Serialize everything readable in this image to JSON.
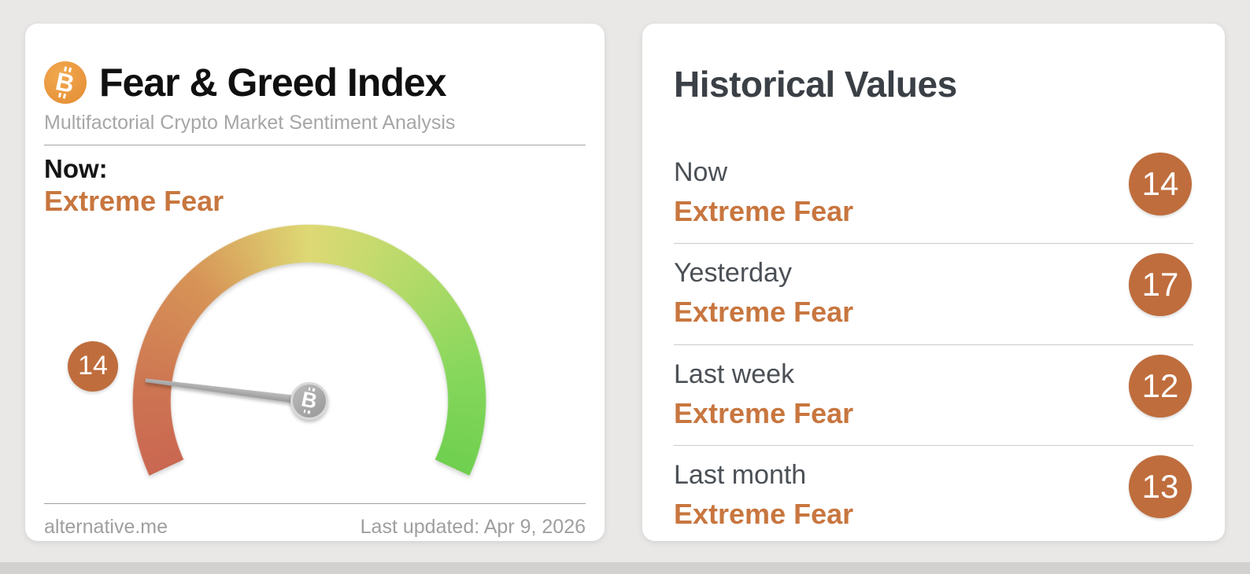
{
  "page": {
    "background": "#e9e8e7",
    "bottom_strip_color": "#d2d1d0"
  },
  "gauge_card": {
    "title": "Fear & Greed Index",
    "subtitle": "Multifactorial Crypto Market Sentiment Analysis",
    "now_label": "Now:",
    "now_sentiment": "Extreme Fear",
    "gauge_value_badge": "14",
    "footer": {
      "site": "alternative.me",
      "last_updated": "Last updated: Apr 9, 2026"
    }
  },
  "historical": {
    "title": "Historical Values",
    "rows": [
      {
        "label": "Now",
        "sentiment": "Extreme Fear",
        "value": "14"
      },
      {
        "label": "Yesterday",
        "sentiment": "Extreme Fear",
        "value": "17"
      },
      {
        "label": "Last week",
        "sentiment": "Extreme Fear",
        "value": "12"
      },
      {
        "label": "Last month",
        "sentiment": "Extreme Fear",
        "value": "13"
      }
    ]
  },
  "colors": {
    "accent_orange_text": "#c8763f",
    "badge_background": "#bf6d3d",
    "bitcoin_orange": "#e9973e",
    "gauge_red": "#ca6751",
    "gauge_yellow": "#ded974",
    "gauge_green": "#6fcf4f",
    "needle_gray": "#a0a0a0"
  },
  "chart_data": {
    "type": "gauge",
    "title": "Fear & Greed Index",
    "current_value": 14,
    "current_sentiment": "Extreme Fear",
    "range": [
      0,
      100
    ],
    "arc_sweep_degrees": 230,
    "color_scale": [
      "#ca6751",
      "#d79457",
      "#ded974",
      "#b3da69",
      "#86d75c",
      "#6fcf4f"
    ],
    "legend": "red = Extreme Fear (0) through green = Extreme Greed (100)",
    "historical_values": [
      {
        "label": "Now",
        "sentiment": "Extreme Fear",
        "value": 14
      },
      {
        "label": "Yesterday",
        "sentiment": "Extreme Fear",
        "value": 17
      },
      {
        "label": "Last week",
        "sentiment": "Extreme Fear",
        "value": 12
      },
      {
        "label": "Last month",
        "sentiment": "Extreme Fear",
        "value": 13
      }
    ]
  }
}
